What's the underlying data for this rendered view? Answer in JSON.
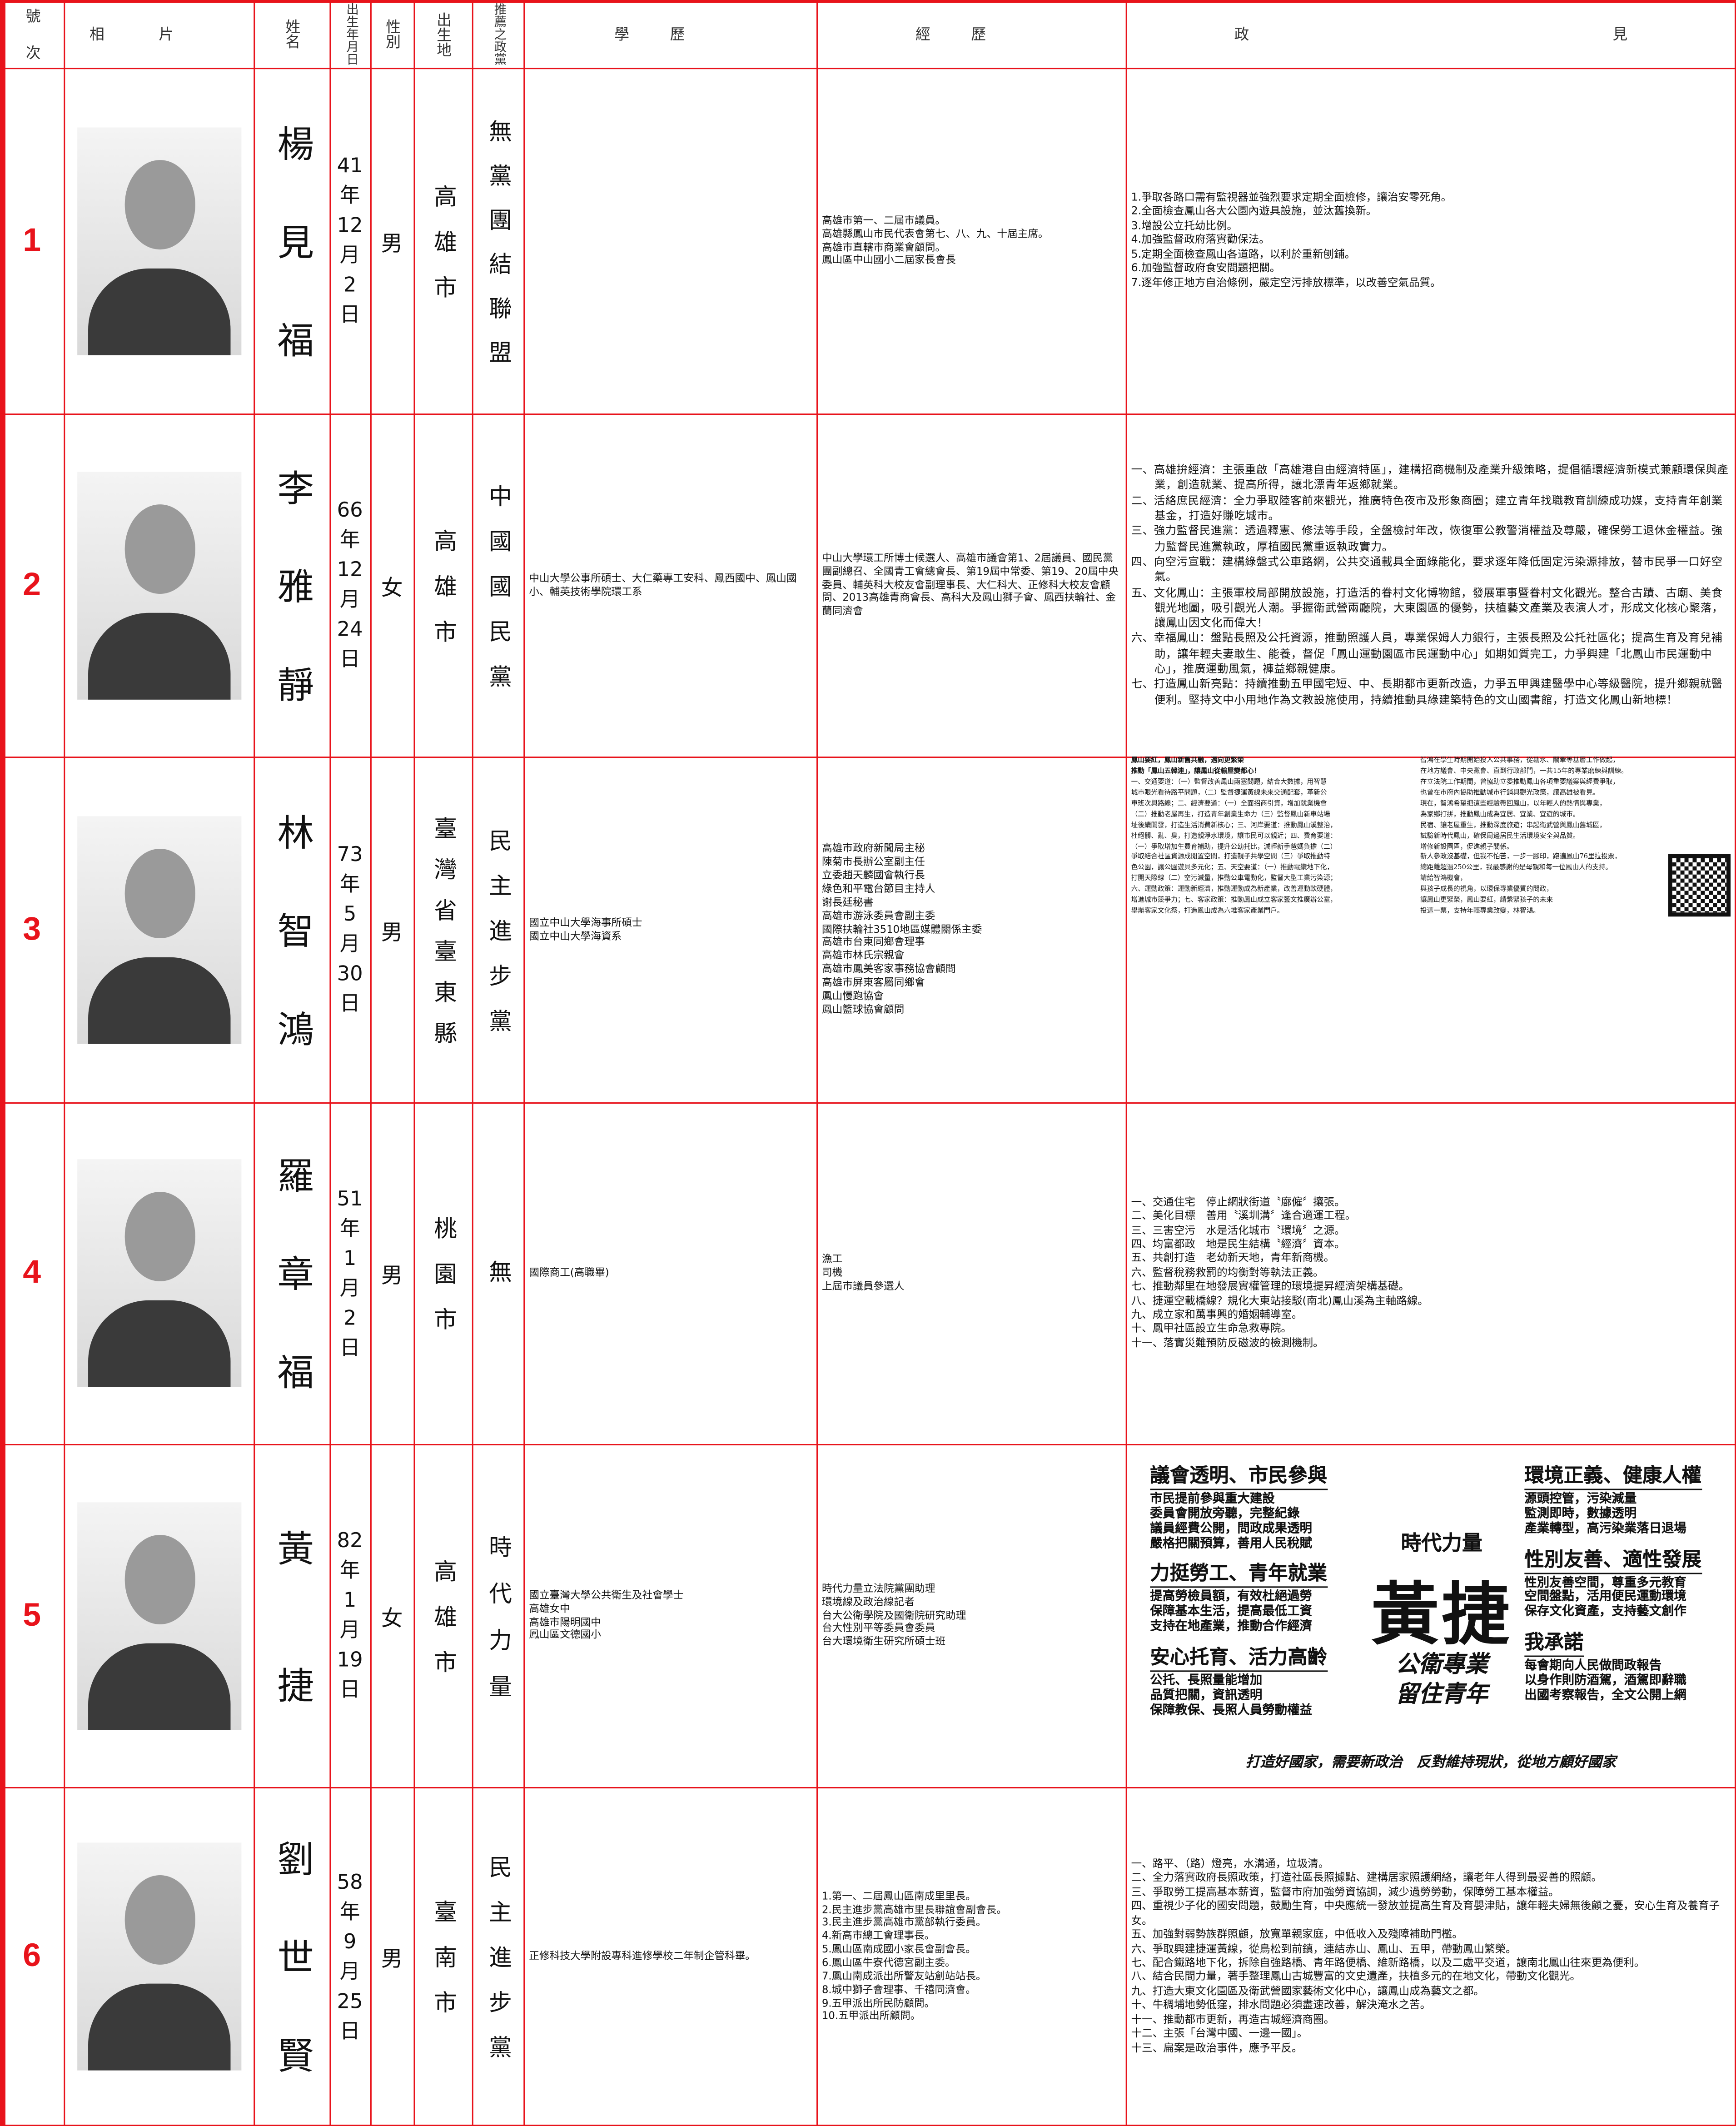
{
  "header": {
    "columns": [
      "號次",
      "相片",
      "姓名",
      "出生年月日",
      "性別",
      "出生地",
      "推薦之政黨",
      "學歷",
      "經歷",
      "政見"
    ]
  },
  "candidates": [
    {
      "number": 1,
      "name": "楊見福",
      "birth": [
        "41",
        "年",
        "12",
        "月",
        "2",
        "日"
      ],
      "gender": "男",
      "birthplace": "高雄市",
      "party": "無黨團結聯盟",
      "experience": [
        "高雄市第一、二屆市議員。",
        "高雄縣鳳山市民代表會第七、八、九、十屆主席。",
        "高雄市直轄市商業會顧問。",
        "鳳山區中山國小二屆家長會長"
      ],
      "platform": [
        "1.爭取各路口需有監視器並強烈要求定期全面檢修，讓治安零死角。",
        "2.全面檢查鳳山各大公園內遊具設施，並汰舊換新。",
        "3.增設公立托幼比例。",
        "4.加強監督政府落實勸保法。",
        "5.定期全面檢查鳳山各道路，以利於重新刨鋪。",
        "6.加強監督政府食安問題把關。",
        "7.逐年修正地方自治條例，嚴定空污排放標準，以改善空氣品質。"
      ]
    },
    {
      "number": 2,
      "name": "李雅靜",
      "birth": [
        "66",
        "年",
        "12",
        "月",
        "24",
        "日"
      ],
      "gender": "女",
      "birthplace": "高雄市",
      "party": "中國國民黨",
      "education": [
        "中山大學公事所碩士、大仁藥專工安科、鳳西國中、鳳山國小、輔英技術學院環工系"
      ],
      "experience": [
        "中山大學環工所博士候選人、高雄市議會第1、2屆議員、國民黨團副總召、全國青工會總會長、第19屆中常委、第19、20屆中央委員、輔英科大校友會副理事長、大仁科大、正修科大校友會顧問、2013高雄青商會長、高科大及鳳山獅子會、鳳西扶輪社、金蘭同濟會"
      ],
      "platform": [
        "一、高雄拚經濟：主張重啟「高雄港自由經濟特區」，建構招商機制及產業升級策略，提倡循環經濟新模式兼顧環保與產業，創造就業、提高所得，讓北漂青年返鄉就業。",
        "二、活絡庶民經濟：全力爭取陸客前來觀光，推廣特色夜市及形象商圈；建立青年找職教育訓練成功媒，支持青年創業基金，打造好賺吃城市。",
        "三、強力監督民進黨：透過釋憲、修法等手段，全盤檢討年改，恢復軍公教警消權益及尊嚴，確保勞工退休金權益。強力監督民進黨執政，厚植國民黨重返執政實力。",
        "四、向空污宣戰：建構綠盤式公車路網，公共交通載具全面綠能化，要求逐年降低固定污染源排放，替市民爭一口好空氣。",
        "五、文化鳳山：主張軍校局部開放設施，打造活的眷村文化博物館，發展軍事暨眷村文化觀光。整合古蹟、古廟、美食觀光地圖，吸引觀光人潮。爭握衛武營兩廳院，大東園區的優勢，扶植藝文產業及表演人才，形成文化核心聚落，讓鳳山因文化而偉大！",
        "六、幸福鳳山：盤點長照及公托資源，推動照護人員，專業保姆人力銀行，主張長照及公托社區化；提高生育及育兒補助，讓年輕夫妻敢生、能養，督促「鳳山運動園區市民運動中心」如期如質完工，力爭興建「北鳳山市民運動中心」，推廣運動風氣，褲益鄉親健康。",
        "七、打造鳳山新亮點：持續推動五甲國宅短、中、長期都市更新改造，力爭五甲興建醫學中心等級醫院，提升鄉親就醫便利。堅持文中小用地作為文教設施使用，持續推動具綠建築特色的文山國書館，打造文化鳳山新地標！"
      ]
    },
    {
      "number": 3,
      "name": "林智鴻",
      "birth": [
        "73",
        "年",
        "5",
        "月",
        "30",
        "日"
      ],
      "gender": "男",
      "birthplace": "臺灣省臺東縣",
      "party": "民主進步黨",
      "education": [
        "國立中山大學海事所碩士",
        "國立中山大學海資系"
      ],
      "experience": [
        "高雄市政府新聞局主秘",
        "陳菊市長辦公室副主任",
        "立委趙天麟國會執行長",
        "綠色和平電台節目主持人",
        "謝長廷秘書",
        "高雄市游泳委員會副主委",
        "國際扶輪社3510地區媒體關係主委",
        "高雄市台東同鄉會理事",
        "高雄市林氏宗親會",
        "高雄市鳳美客家事務協會顧問",
        "高雄市屏東客屬同鄉會",
        "鳳山慢跑協會",
        "鳳山籃球協會顧問"
      ],
      "platform_columns": [
        [
          "鳳山要紅，鳳山新舊共融，邁向更繁榮",
          "推動「鳳山五韓連」，讓鳳山從輸屋變都心！",
          "一、交通要道：（一）監督改善鳳山兩塞問題，結合大數據，用智慧",
          "城市眼光看待路平問題，（二）監督捷運黃線未來交通配套，革新公",
          "車班次與路線；二、經濟要道：（一）全面招商引資，增加就業機會",
          "（二）推動老屋再生，打造青年創業生命力（三）監督鳳山新車站場",
          "址後續開發，打造生活消費新核心；三、河岸要道：推動鳳山溪整治，",
          "杜絕髒、亂、臭，打造親淨水環境，讓市民可以親近；四、費育要道：",
          "（一）爭取增加生費育補助，提升公幼托比，減輕新手爸媽負擔（二）",
          "爭取結合社區資源成閒置空間，打造親子共學空間（三）爭取推動特",
          "色公園，讓公園遊具多元化；五、天空要道：（一）推動電纜地下化，",
          "打開天際線（二）空污減量，推動公車電動化，監督大型工業污染源；",
          "六、運動政策：運動新經濟，推動運動成為新產業，改善運動軟硬體，",
          "增進城市競爭力；七、客家政策：推動鳳山成立客家藝文推廣辦公室，",
          "舉辦客家文化祭，打造鳳山成為六堆客家產業門戶。"
        ],
        [
          "智鴻在學生時期開始投入公共事務，從勘水、關牽等基層工作做起，",
          "在地方議會、中央黨會、直到行政部門，一共15年的專業磨練與訓練。",
          "在立法院工作期間，曾協助立委推動鳳山各項重要議案與經費爭取，",
          "也曾在市府內協助推動城市行銷與觀光政策，讓高雄被看見。",
          "現在，智鴻希望把這些經驗帶回鳳山，以年輕人的熱情與專業，",
          "為家鄉打拼，推動鳳山成為宜居、宜業、宜遊的城市。",
          "民宿、讓老屋重生，推動深度旅遊；串起衛武營與鳳山舊城區，",
          "試驗新時代鳳山，確保周邊居民生活環境安全與品質。",
          "增修新設園區，促進親子關係。",
          "新人參政沒基礎，但我不怕苦，一步一腳印，跑遍鳳山76里拉投票，",
          "總距離超過250公里，我最感謝的是母親和每一位鳳山人的支持。",
          "請給智鴻機會，",
          "與孩子成長的視角，以環保專業優質的問政，",
          "讓鳳山更緊榮，鳳山要紅，請繫緊孩子的未來",
          "投這一票，支持年輕專業改變，林智鴻。"
        ]
      ]
    },
    {
      "number": 4,
      "name": "羅章福",
      "birth": [
        "51",
        "年",
        "1",
        "月",
        "2",
        "日"
      ],
      "gender": "男",
      "birthplace": "桃園市",
      "party": "無",
      "education": [
        "國際商工(高職畢)"
      ],
      "experience": [
        "漁工",
        "司機",
        "上屆市議員參選人"
      ],
      "platform": [
        "一、交通住宅　停止網狀街道〝廍僱〞攘張。",
        "二、美化目標　善用〝溪圳溝〞逢合適運工程。",
        "三、三害空污　水是活化城市〝環境〞之源。",
        "四、均富都政　地是民生結構〝經濟〞資本。",
        "五、共創打造　老幼新天地，青年新商機。",
        "六、監督稅務救罰的均衡對等執法正義。",
        "七、推動鄰里在地發展實權管理的環境提昇經濟架構基礎。",
        "八、捷運空載橋線？規化大東站接駁(南北)鳳山溪為主軸路線。",
        "九、成立家和萬事興的婚姻輔導室。",
        "十、鳳甲社區設立生命急救專院。",
        "十一、落實災難預防反磁波的檢測機制。"
      ]
    },
    {
      "number": 5,
      "name": "黃捷",
      "birth": [
        "82",
        "年",
        "1",
        "月",
        "19",
        "日"
      ],
      "gender": "女",
      "birthplace": "高雄市",
      "party": "時代力量",
      "education": [
        "國立臺灣大學公共衛生及社會學士",
        "高雄女中",
        "高雄市陽明國中",
        "鳳山區文德國小"
      ],
      "experience": [
        "時代力量立法院黨團助理",
        "環境線及政治線記者",
        "台大公衛學院及國衛院研究助理",
        "台大性別平等委員會委員",
        "台大環境衛生研究所碩士班"
      ],
      "platform_poster": {
        "left": [
          {
            "heading": "議會透明、市民參與",
            "items": [
              "市民提前參與重大建設",
              "委員會開放旁聽，完整紀錄",
              "議員經費公開，問政成果透明",
              "嚴格把關預算，善用人民稅賦"
            ]
          },
          {
            "heading": "力挺勞工、青年就業",
            "items": [
              "提高勞檢員額，有效杜絕過勞",
              "保障基本生活，提高最低工資",
              "支持在地產業，推動合作經濟"
            ]
          },
          {
            "heading": "安心托育、活力高齡",
            "items": [
              "公托、長照量能增加",
              "品質把關，資訊透明",
              "保障教保、長照人員勞動權益"
            ]
          }
        ],
        "right": [
          {
            "heading": "環境正義、健康人權",
            "items": [
              "源頭控管，污染減量",
              "監測即時，數據透明",
              "產業轉型，高污染業落日退場"
            ]
          },
          {
            "heading": "性別友善、適性發展",
            "items": [
              "性別友善空間，尊重多元教育",
              "空間盤點，活用便民運動環境",
              "保存文化資產，支持藝文創作"
            ]
          },
          {
            "heading": "我承諾",
            "items": [
              "每會期向人民做問政報告",
              "以身作則防酒駕，酒駕即辭職",
              "出國考察報告，全文公開上網"
            ]
          }
        ],
        "brand": "時代力量",
        "name": "黃捷",
        "tagline": [
          "公衛專業",
          "留住青年"
        ],
        "slogan": "打造好國家，需要新政治　反對維持現狀，從地方顧好國家"
      }
    },
    {
      "number": 6,
      "name": "劉世賢",
      "birth": [
        "58",
        "年",
        "9",
        "月",
        "25",
        "日"
      ],
      "gender": "男",
      "birthplace": "臺南市",
      "party": "民主進步黨",
      "education": [
        "正修科技大學附設專科進修學校二年制企管科畢。"
      ],
      "experience": [
        "1.第一、二屆鳳山區南成里里長。",
        "2.民主進步黨高雄市里長聯誼會副會長。",
        "3.民主進步黨高雄市黨部執行委員。",
        "4.新高市總工會理事長。",
        "5.鳳山區南成國小家長會副會長。",
        "6.鳳山區牛寮代德宮副主委。",
        "7.鳳山南成派出所警友站創站站長。",
        "8.城中獅子會理事、千禧同濟會。",
        "9.五甲派出所民防顧問。",
        "10.五甲派出所顧問。"
      ],
      "platform": [
        "一、路平、（路）燈亮，水溝通，垃圾清。",
        "二、全力落實政府長照政策，打造社區長照據點、建構居家照護網絡，讓老年人得到最妥善的照顧。",
        "三、爭取勞工提高基本薪資，監督市府加強勞資協調，減少過勞勞動，保障勞工基本權益。",
        "四、重視少子化的國安問題，鼓勵生育，中央應統一發放並提高生育及育嬰津貼，讓年輕夫婦無後顧之憂，安心生育及養育子女。",
        "五、加強對弱勢族群照顧，放寬單親家庭，中低收入及殘障補助門檻。",
        "六、爭取興建捷運黃線，從鳥松到前鎮，連結赤山、鳳山、五甲，帶動鳳山繁榮。",
        "七、配合鐵路地下化，拆除自強路橋、青年路便橋、維新路橋，以及二處平交道，讓南北鳳山往來更為便利。",
        "八、結合民間力量，著手整理鳳山古城豐富的文史遺產，扶植多元的在地文化，帶動文化觀光。",
        "九、打造大東文化園區及衛武營國家藝術文化中心，讓鳳山成為藝文之都。",
        "十、牛稠埔地勢低窪，排水問題必須盡速改善，解決淹水之苦。",
        "十一、推動都市更新，再造古城經濟商圈。",
        "十二、主張「台灣中國、一邊一國」。",
        "十三、扁案是政治事件，應予平反。"
      ]
    }
  ]
}
